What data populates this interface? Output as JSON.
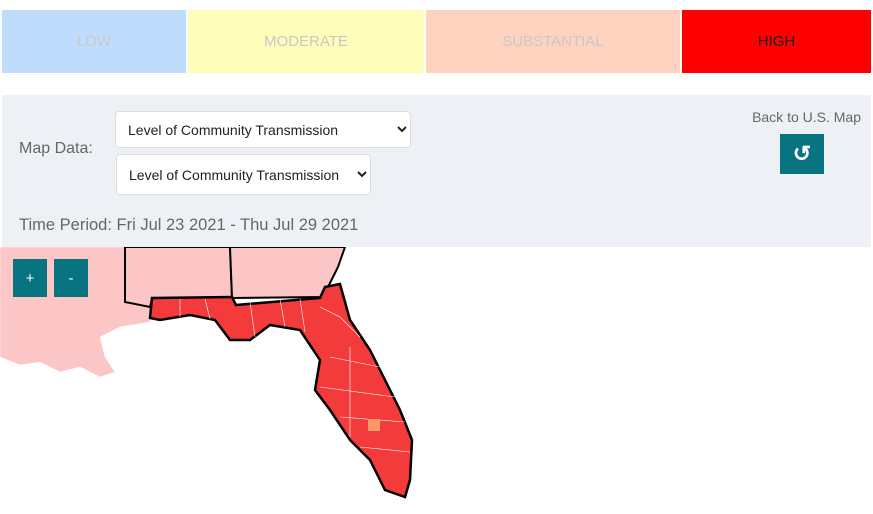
{
  "legend": [
    {
      "label": "LOW",
      "color": "#c0dcfd"
    },
    {
      "label": "MODERATE",
      "color": "#fffdb9"
    },
    {
      "label": "SUBSTANTIAL",
      "color": "#ffd3c0"
    },
    {
      "label": "HIGH",
      "color": "#ff0000"
    }
  ],
  "controls": {
    "map_data_label": "Map Data:",
    "select1": "Level of Community Transmission",
    "select2": "Level of Community Transmission",
    "time_period": "Time Period: Fri Jul 23 2021 - Thu Jul 29 2021",
    "back_label": "Back to U.S. Map",
    "back_icon": "undo-icon"
  },
  "zoom": {
    "in": "+",
    "out": "-"
  },
  "map": {
    "focus_color": "#f43b3b",
    "neighbor_color": "#fcc6c6"
  }
}
